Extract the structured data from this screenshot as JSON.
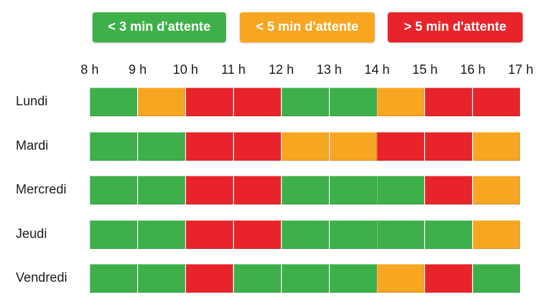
{
  "chart_data": {
    "type": "heatmap",
    "legend": [
      {
        "key": "lt3",
        "label": "< 3 min d'attente",
        "color": "#3db04a"
      },
      {
        "key": "lt5",
        "label": "< 5 min d'attente",
        "color": "#f7a622"
      },
      {
        "key": "gt5",
        "label": "> 5 min d'attente",
        "color": "#e8242a"
      }
    ],
    "hours": [
      "8 h",
      "9 h",
      "10 h",
      "11 h",
      "12 h",
      "13 h",
      "14 h",
      "15 h",
      "16 h",
      "17 h"
    ],
    "days": [
      {
        "name": "Lundi",
        "cells": [
          "lt3",
          "lt5",
          "gt5",
          "gt5",
          "lt3",
          "lt3",
          "lt5",
          "gt5",
          "gt5"
        ]
      },
      {
        "name": "Mardi",
        "cells": [
          "lt3",
          "lt3",
          "gt5",
          "gt5",
          "lt5",
          "lt5",
          "gt5",
          "gt5",
          "lt5"
        ]
      },
      {
        "name": "Mercredi",
        "cells": [
          "lt3",
          "lt3",
          "gt5",
          "gt5",
          "lt3",
          "lt3",
          "lt3",
          "gt5",
          "lt5"
        ]
      },
      {
        "name": "Jeudi",
        "cells": [
          "lt3",
          "lt3",
          "gt5",
          "gt5",
          "lt3",
          "lt3",
          "lt3",
          "lt3",
          "lt5"
        ]
      },
      {
        "name": "Vendredi",
        "cells": [
          "lt3",
          "lt3",
          "gt5",
          "lt3",
          "lt3",
          "lt3",
          "lt5",
          "gt5",
          "lt3"
        ]
      }
    ]
  }
}
